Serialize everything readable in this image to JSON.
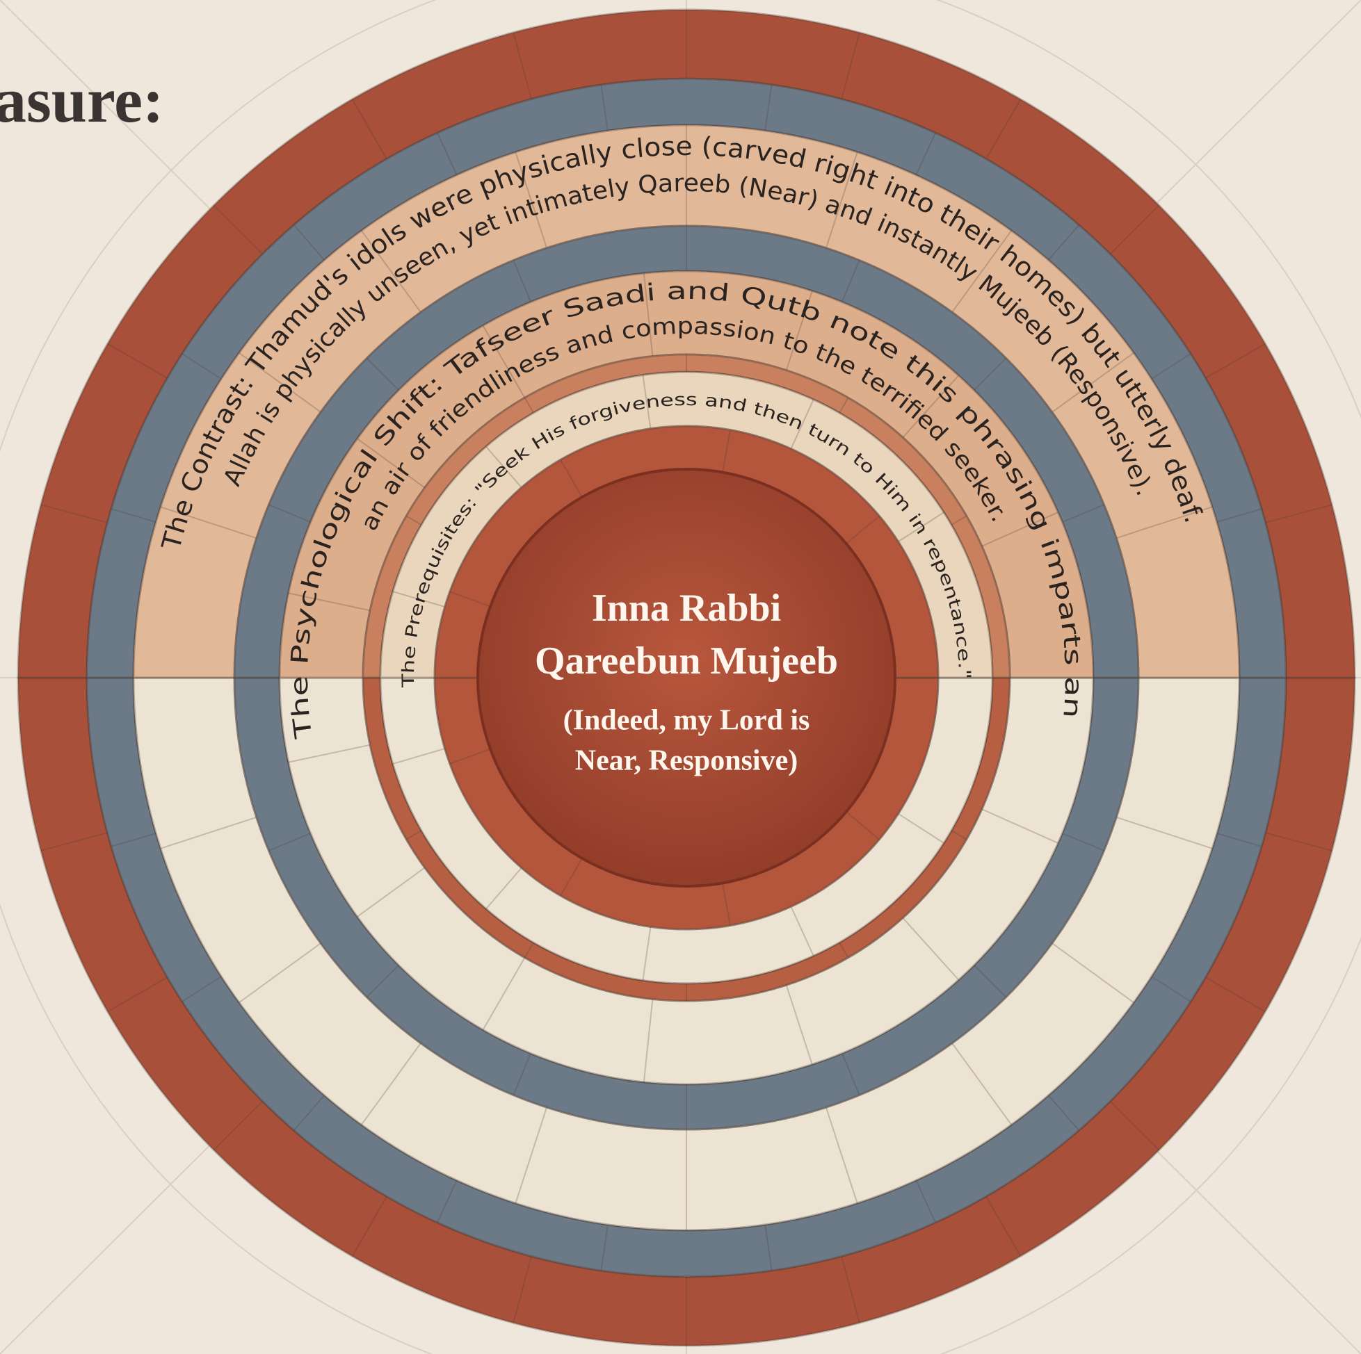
{
  "header": {
    "title_fragment": "asure:"
  },
  "rings": [
    {
      "lines": [
        "The Contrast: Thamud's idols were physically close (carved right into their homes) but utterly deaf.",
        "Allah is physically unseen, yet intimately Qareeb (Near) and instantly Mujeeb (Responsive)."
      ]
    },
    {
      "lines": [
        "The Psychological Shift: Tafseer Saadi and Qutb note this phrasing imparts an",
        "an air of friendliness and compassion to the terrified seeker."
      ]
    },
    {
      "lines": [
        "The Prerequisites: \"Seek His forgiveness and then turn to Him in repentance.\""
      ]
    }
  ],
  "center": {
    "title_lines": [
      "Inna Rabbi",
      "Qareebun Mujeeb"
    ],
    "subtitle_lines": [
      "(Indeed, my Lord is",
      "Near, Responsive)"
    ]
  }
}
